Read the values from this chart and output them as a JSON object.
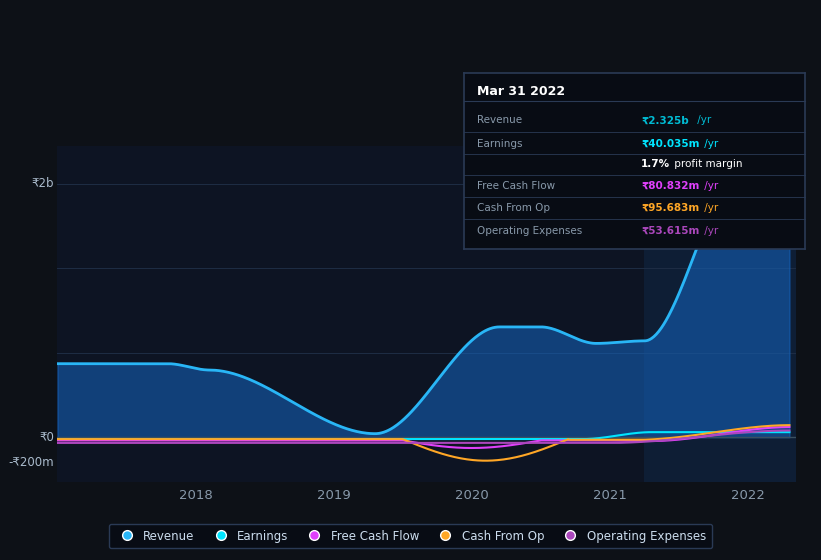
{
  "background_color": "#0d1117",
  "plot_bg_color": "#0d1423",
  "highlight_bg_color": "#0e1e35",
  "grid_color": "#1e2d45",
  "ylim": [
    -350000000,
    2300000000
  ],
  "xlim": [
    2017.0,
    2022.35
  ],
  "highlight_xmin": 2021.25,
  "y_labels_text": [
    "₹2b",
    "₹0",
    "-₹200m"
  ],
  "y_labels_vals": [
    2000000000,
    0,
    -200000000
  ],
  "x_ticks": [
    2018,
    2019,
    2020,
    2021,
    2022
  ],
  "x_labels": [
    "2018",
    "2019",
    "2020",
    "2021",
    "2022"
  ],
  "series_colors": {
    "revenue": "#29b6f6",
    "revenue_fill": "#1565c0",
    "earnings": "#00e5ff",
    "fcf": "#e040fb",
    "cop": "#ffa726",
    "opex": "#ab47bc"
  },
  "legend_labels": [
    "Revenue",
    "Earnings",
    "Free Cash Flow",
    "Cash From Op",
    "Operating Expenses"
  ],
  "legend_colors": [
    "#29b6f6",
    "#00e5ff",
    "#e040fb",
    "#ffa726",
    "#ab47bc"
  ],
  "box_date": "Mar 31 2022",
  "box_rows": [
    {
      "label": "Revenue",
      "value": "₹2.325b",
      "unit": " /yr",
      "vcol": "#00bcd4"
    },
    {
      "label": "Earnings",
      "value": "₹40.035m",
      "unit": " /yr",
      "vcol": "#00e5ff"
    },
    {
      "label": "",
      "value": "1.7%",
      "unit": " profit margin",
      "vcol": "#ffffff"
    },
    {
      "label": "Free Cash Flow",
      "value": "₹80.832m",
      "unit": " /yr",
      "vcol": "#e040fb"
    },
    {
      "label": "Cash From Op",
      "value": "₹95.683m",
      "unit": " /yr",
      "vcol": "#ffa726"
    },
    {
      "label": "Operating Expenses",
      "value": "₹53.615m",
      "unit": " /yr",
      "vcol": "#ab47bc"
    }
  ]
}
